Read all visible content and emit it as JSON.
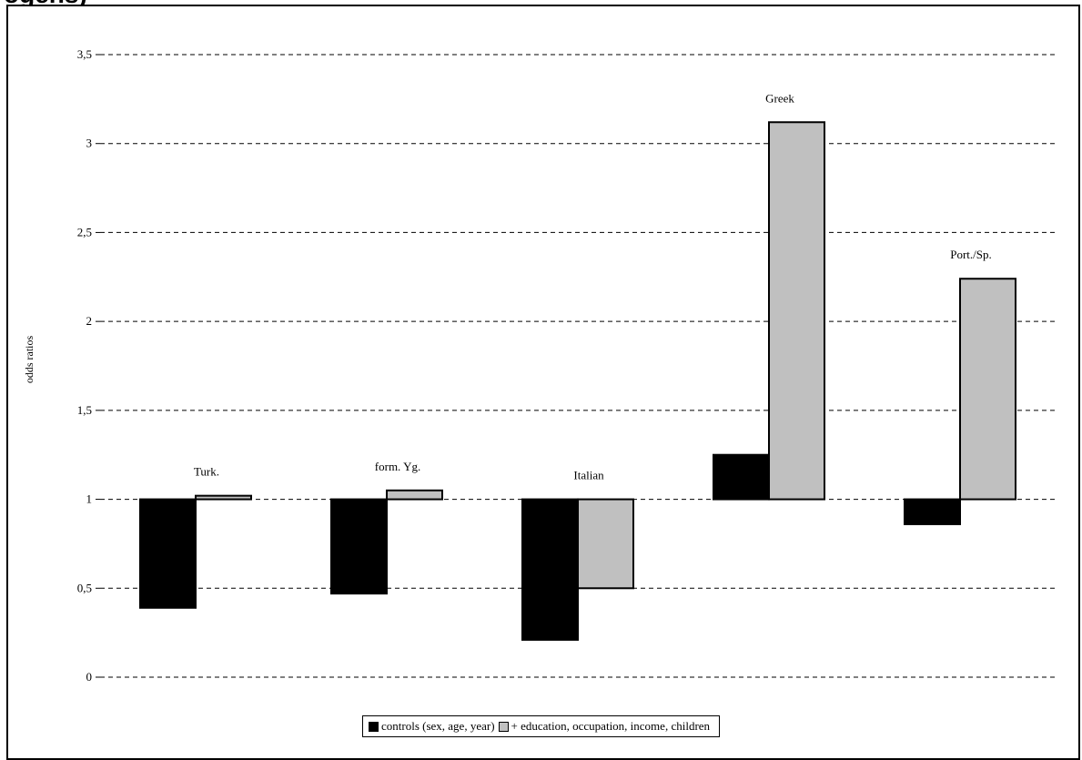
{
  "header": {
    "title_fragment": "ogens)"
  },
  "chart_data": {
    "type": "bar",
    "title": "",
    "xlabel": "",
    "ylabel": "odds ratios",
    "ylim": [
      0,
      3.5
    ],
    "baseline": 1,
    "yticks": [
      "0",
      "0,5",
      "1",
      "1,5",
      "2",
      "2,5",
      "3",
      "3,5"
    ],
    "ytick_values": [
      0,
      0.5,
      1,
      1.5,
      2,
      2.5,
      3,
      3.5
    ],
    "categories": [
      "Turk.",
      "form. Yg.",
      "Italian",
      "Greek",
      "Port./Sp."
    ],
    "series": [
      {
        "name": "controls (sex, age, year)",
        "values": [
          0.39,
          0.47,
          0.21,
          1.25,
          0.86
        ],
        "color": "#000000"
      },
      {
        "name": "+ education, occupation, income, children",
        "values": [
          1.02,
          1.05,
          0.5,
          3.12,
          2.24
        ],
        "color": "#c0c0c0"
      }
    ],
    "grid": "horizontal dashed",
    "legend_position": "bottom"
  }
}
